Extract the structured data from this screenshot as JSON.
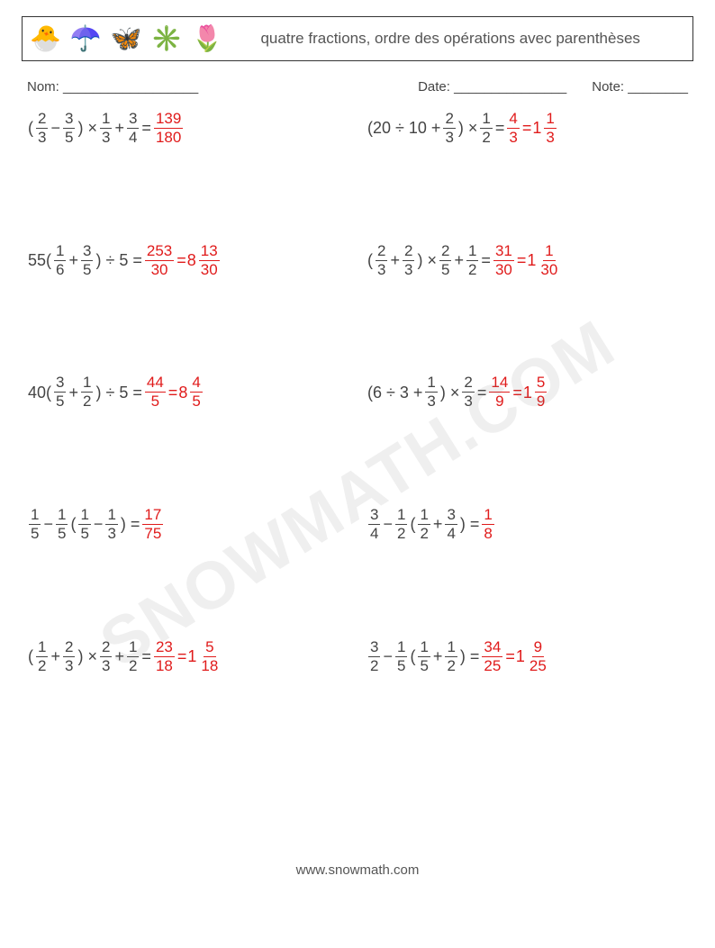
{
  "header": {
    "icons": [
      "🐣",
      "☂️",
      "🦋",
      "✳️",
      "🌷"
    ],
    "title": "quatre fractions, ordre des opérations avec parenthèses"
  },
  "meta": {
    "name_label": "Nom: __________________",
    "date_label": "Date: _______________",
    "note_label": "Note: ________"
  },
  "answer_color": "#e01b1b",
  "text_color": "#444444",
  "watermark": "SNOWMATH.COM",
  "footer": "www.snowmath.com",
  "problems": [
    {
      "left": [
        {
          "t": "txt",
          "v": "("
        },
        {
          "t": "frac",
          "n": "2",
          "d": "3"
        },
        {
          "t": "txt",
          "v": " − "
        },
        {
          "t": "frac",
          "n": "3",
          "d": "5"
        },
        {
          "t": "txt",
          "v": ") × "
        },
        {
          "t": "frac",
          "n": "1",
          "d": "3"
        },
        {
          "t": "txt",
          "v": " + "
        },
        {
          "t": "frac",
          "n": "3",
          "d": "4"
        },
        {
          "t": "txt",
          "v": " = "
        },
        {
          "t": "frac",
          "n": "139",
          "d": "180",
          "ans": true
        }
      ],
      "right": [
        {
          "t": "txt",
          "v": "(20 ÷ 10 + "
        },
        {
          "t": "frac",
          "n": "2",
          "d": "3"
        },
        {
          "t": "txt",
          "v": ") × "
        },
        {
          "t": "frac",
          "n": "1",
          "d": "2"
        },
        {
          "t": "txt",
          "v": " = "
        },
        {
          "t": "frac",
          "n": "4",
          "d": "3",
          "ans": true
        },
        {
          "t": "txt",
          "v": " = ",
          "ans": true
        },
        {
          "t": "mixed",
          "w": "1",
          "n": "1",
          "d": "3",
          "ans": true
        }
      ]
    },
    {
      "left": [
        {
          "t": "txt",
          "v": "55("
        },
        {
          "t": "frac",
          "n": "1",
          "d": "6"
        },
        {
          "t": "txt",
          "v": " + "
        },
        {
          "t": "frac",
          "n": "3",
          "d": "5"
        },
        {
          "t": "txt",
          "v": ") ÷ 5 = "
        },
        {
          "t": "frac",
          "n": "253",
          "d": "30",
          "ans": true
        },
        {
          "t": "txt",
          "v": " = ",
          "ans": true
        },
        {
          "t": "mixed",
          "w": "8",
          "n": "13",
          "d": "30",
          "ans": true
        }
      ],
      "right": [
        {
          "t": "txt",
          "v": "("
        },
        {
          "t": "frac",
          "n": "2",
          "d": "3"
        },
        {
          "t": "txt",
          "v": " + "
        },
        {
          "t": "frac",
          "n": "2",
          "d": "3"
        },
        {
          "t": "txt",
          "v": ") × "
        },
        {
          "t": "frac",
          "n": "2",
          "d": "5"
        },
        {
          "t": "txt",
          "v": " + "
        },
        {
          "t": "frac",
          "n": "1",
          "d": "2"
        },
        {
          "t": "txt",
          "v": " = "
        },
        {
          "t": "frac",
          "n": "31",
          "d": "30",
          "ans": true
        },
        {
          "t": "txt",
          "v": " = ",
          "ans": true
        },
        {
          "t": "mixed",
          "w": "1",
          "n": "1",
          "d": "30",
          "ans": true
        }
      ]
    },
    {
      "left": [
        {
          "t": "txt",
          "v": "40("
        },
        {
          "t": "frac",
          "n": "3",
          "d": "5"
        },
        {
          "t": "txt",
          "v": " + "
        },
        {
          "t": "frac",
          "n": "1",
          "d": "2"
        },
        {
          "t": "txt",
          "v": ") ÷ 5 = "
        },
        {
          "t": "frac",
          "n": "44",
          "d": "5",
          "ans": true
        },
        {
          "t": "txt",
          "v": " = ",
          "ans": true
        },
        {
          "t": "mixed",
          "w": "8",
          "n": "4",
          "d": "5",
          "ans": true
        }
      ],
      "right": [
        {
          "t": "txt",
          "v": "(6 ÷ 3 + "
        },
        {
          "t": "frac",
          "n": "1",
          "d": "3"
        },
        {
          "t": "txt",
          "v": ") × "
        },
        {
          "t": "frac",
          "n": "2",
          "d": "3"
        },
        {
          "t": "txt",
          "v": " = "
        },
        {
          "t": "frac",
          "n": "14",
          "d": "9",
          "ans": true
        },
        {
          "t": "txt",
          "v": " = ",
          "ans": true
        },
        {
          "t": "mixed",
          "w": "1",
          "n": "5",
          "d": "9",
          "ans": true
        }
      ]
    },
    {
      "left": [
        {
          "t": "frac",
          "n": "1",
          "d": "5"
        },
        {
          "t": "txt",
          "v": " − "
        },
        {
          "t": "frac",
          "n": "1",
          "d": "5"
        },
        {
          "t": "txt",
          "v": "("
        },
        {
          "t": "frac",
          "n": "1",
          "d": "5"
        },
        {
          "t": "txt",
          "v": " − "
        },
        {
          "t": "frac",
          "n": "1",
          "d": "3"
        },
        {
          "t": "txt",
          "v": ") = "
        },
        {
          "t": "frac",
          "n": "17",
          "d": "75",
          "ans": true
        }
      ],
      "right": [
        {
          "t": "frac",
          "n": "3",
          "d": "4"
        },
        {
          "t": "txt",
          "v": " − "
        },
        {
          "t": "frac",
          "n": "1",
          "d": "2"
        },
        {
          "t": "txt",
          "v": "("
        },
        {
          "t": "frac",
          "n": "1",
          "d": "2"
        },
        {
          "t": "txt",
          "v": " + "
        },
        {
          "t": "frac",
          "n": "3",
          "d": "4"
        },
        {
          "t": "txt",
          "v": ") = "
        },
        {
          "t": "frac",
          "n": "1",
          "d": "8",
          "ans": true
        }
      ]
    },
    {
      "left": [
        {
          "t": "txt",
          "v": "("
        },
        {
          "t": "frac",
          "n": "1",
          "d": "2"
        },
        {
          "t": "txt",
          "v": " + "
        },
        {
          "t": "frac",
          "n": "2",
          "d": "3"
        },
        {
          "t": "txt",
          "v": ") × "
        },
        {
          "t": "frac",
          "n": "2",
          "d": "3"
        },
        {
          "t": "txt",
          "v": " + "
        },
        {
          "t": "frac",
          "n": "1",
          "d": "2"
        },
        {
          "t": "txt",
          "v": " = "
        },
        {
          "t": "frac",
          "n": "23",
          "d": "18",
          "ans": true
        },
        {
          "t": "txt",
          "v": " = ",
          "ans": true
        },
        {
          "t": "mixed",
          "w": "1",
          "n": "5",
          "d": "18",
          "ans": true
        }
      ],
      "right": [
        {
          "t": "frac",
          "n": "3",
          "d": "2"
        },
        {
          "t": "txt",
          "v": " − "
        },
        {
          "t": "frac",
          "n": "1",
          "d": "5"
        },
        {
          "t": "txt",
          "v": "("
        },
        {
          "t": "frac",
          "n": "1",
          "d": "5"
        },
        {
          "t": "txt",
          "v": " + "
        },
        {
          "t": "frac",
          "n": "1",
          "d": "2"
        },
        {
          "t": "txt",
          "v": ") = "
        },
        {
          "t": "frac",
          "n": "34",
          "d": "25",
          "ans": true
        },
        {
          "t": "txt",
          "v": " = ",
          "ans": true
        },
        {
          "t": "mixed",
          "w": "1",
          "n": "9",
          "d": "25",
          "ans": true
        }
      ]
    }
  ]
}
